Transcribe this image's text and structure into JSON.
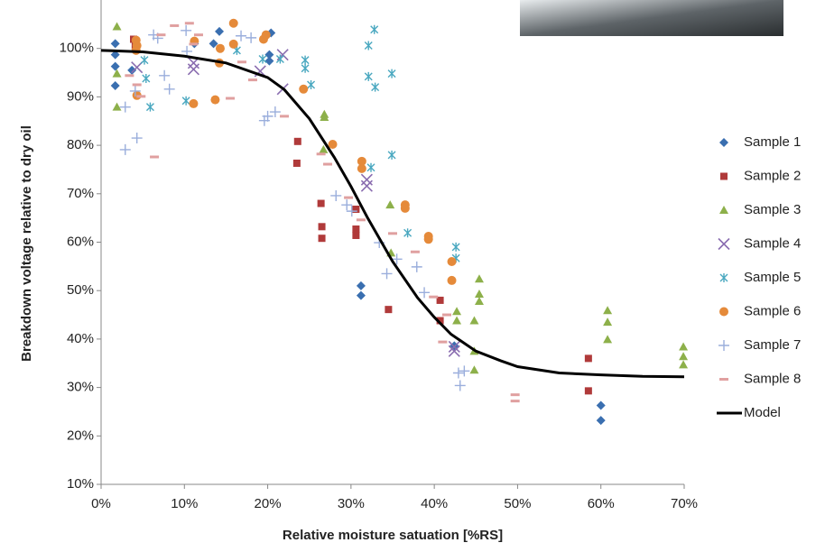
{
  "chart_data": {
    "type": "scatter",
    "x_label": "Relative moisture satuation [%RS]",
    "y_label": "Breakdown voltage  relative to dry oil",
    "xlim": [
      0,
      70
    ],
    "ylim": [
      10,
      110
    ],
    "xticks": [
      {
        "value": 0,
        "label": "0%"
      },
      {
        "value": 10,
        "label": "10%"
      },
      {
        "value": 20,
        "label": "20%"
      },
      {
        "value": 30,
        "label": "30%"
      },
      {
        "value": 40,
        "label": "40%"
      },
      {
        "value": 50,
        "label": "50%"
      },
      {
        "value": 60,
        "label": "60%"
      },
      {
        "value": 70,
        "label": "70%"
      }
    ],
    "yticks": [
      {
        "value": 10,
        "label": "10%"
      },
      {
        "value": 20,
        "label": "20%"
      },
      {
        "value": 30,
        "label": "30%"
      },
      {
        "value": 40,
        "label": "40%"
      },
      {
        "value": 50,
        "label": "50%"
      },
      {
        "value": 60,
        "label": "60%"
      },
      {
        "value": 70,
        "label": "70%"
      },
      {
        "value": 80,
        "label": "80%"
      },
      {
        "value": 90,
        "label": "90%"
      },
      {
        "value": 100,
        "label": "100%"
      }
    ],
    "grid": false,
    "legend": "right",
    "series": [
      {
        "name": "Sample 1",
        "color": "#3a6fb0",
        "marker": "diamond",
        "x": [
          1.7,
          1.7,
          1.7,
          1.7,
          3.7,
          11.2,
          14.2,
          13.5,
          20.2,
          20.2,
          20.4,
          31.2,
          31.2,
          42.4,
          60,
          60
        ],
        "values": [
          101,
          98.7,
          96.3,
          92.3,
          95.5,
          101,
          103.5,
          101,
          98.7,
          97.4,
          103.2,
          49,
          51,
          38.6,
          26.3,
          23.2
        ]
      },
      {
        "name": "Sample 2",
        "color": "#b03a3a",
        "marker": "square",
        "x": [
          3.9,
          4.1,
          23.6,
          23.5,
          26.4,
          26.5,
          26.5,
          30.6,
          30.6,
          30.6,
          34.5,
          40.7,
          40.7,
          58.5,
          58.5
        ],
        "values": [
          101.9,
          100.5,
          80.8,
          76.3,
          68,
          63.2,
          60.8,
          62.7,
          61.4,
          66.8,
          46.1,
          48,
          43.8,
          36,
          29.3
        ]
      },
      {
        "name": "Sample 3",
        "color": "#8db04a",
        "marker": "triangle",
        "x": [
          1.9,
          1.9,
          1.9,
          26.8,
          26.8,
          26.7,
          34.7,
          34.8,
          42.7,
          42.7,
          44.8,
          45.4,
          45.4,
          45.4,
          44.8,
          44.8,
          60.8,
          60.8,
          60.8,
          69.9,
          69.9,
          69.9
        ],
        "values": [
          104.5,
          94.8,
          87.9,
          85.8,
          86.4,
          79.1,
          67.7,
          57.8,
          45.7,
          43.8,
          43.8,
          52.4,
          49.3,
          47.8,
          37.5,
          33.6,
          45.9,
          43.5,
          39.9,
          38.4,
          36.4,
          34.7
        ]
      },
      {
        "name": "Sample 4",
        "color": "#8a6db0",
        "marker": "x",
        "x": [
          4.3,
          11.1,
          11.1,
          19.1,
          21.8,
          21.8,
          31.9,
          31.9,
          42.4,
          42.4
        ],
        "values": [
          96.1,
          97,
          95.7,
          95.3,
          98.7,
          91.6,
          72.9,
          71.6,
          38.4,
          37.5
        ]
      },
      {
        "name": "Sample 5",
        "color": "#4aa8c0",
        "marker": "asterisk",
        "x": [
          5.2,
          5.4,
          5.9,
          10.2,
          16.3,
          19.4,
          21.5,
          24.5,
          24.5,
          25.2,
          32.1,
          32.8,
          32.1,
          32.9,
          34.9,
          34.9,
          32.4,
          36.8,
          42.6,
          42.6
        ],
        "values": [
          97.6,
          93.8,
          87.9,
          89.2,
          99.6,
          97.8,
          97.8,
          97.6,
          95.9,
          92.5,
          100.6,
          103.9,
          94.2,
          92,
          94.8,
          78,
          75.4,
          61.9,
          59,
          56.7
        ]
      },
      {
        "name": "Sample 6",
        "color": "#e58a3a",
        "marker": "circle",
        "x": [
          4.2,
          4.3,
          4.2,
          4.3,
          11.2,
          11.1,
          13.7,
          14.3,
          14.2,
          15.9,
          15.9,
          19.8,
          19.5,
          24.3,
          27.8,
          31.3,
          31.3,
          36.5,
          36.5,
          39.3,
          39.3,
          42.1,
          42.1
        ],
        "values": [
          101.7,
          100.6,
          99.6,
          90.3,
          101.5,
          88.6,
          89.4,
          100,
          97,
          105.2,
          100.9,
          102.8,
          101.9,
          91.6,
          80.2,
          76.7,
          75.2,
          67.7,
          67,
          61.2,
          60.6,
          56,
          52.1
        ]
      },
      {
        "name": "Sample 7",
        "color": "#9aaedc",
        "marker": "plus",
        "x": [
          2.9,
          4.3,
          4.1,
          2.9,
          6.3,
          6.8,
          7.6,
          8.2,
          10.2,
          10.3,
          16.8,
          18,
          19.6,
          20,
          20.9,
          28.2,
          29.5,
          30.1,
          33.4,
          34.3,
          35.5,
          37.9,
          38.8,
          42.9,
          43.6,
          43.1
        ],
        "values": [
          79.1,
          81.5,
          91.2,
          87.9,
          102.8,
          102.1,
          94.4,
          91.6,
          103.7,
          99.4,
          102.6,
          102.2,
          85.1,
          86,
          86.9,
          69.6,
          67.7,
          66.4,
          59.9,
          53.5,
          56.5,
          54.9,
          49.6,
          33,
          33.4,
          30.4
        ]
      },
      {
        "name": "Sample 8",
        "color": "#e0a0a0",
        "marker": "dash",
        "x": [
          3.4,
          4.3,
          4.8,
          6.4,
          7.2,
          8.8,
          10.6,
          11.7,
          11.1,
          15.5,
          16.9,
          18.2,
          22,
          26.4,
          27.2,
          29.7,
          31.2,
          35,
          37.7,
          39.9,
          41,
          41.5,
          49.7,
          49.7
        ],
        "values": [
          94.4,
          92.5,
          90.1,
          77.6,
          102.8,
          104.7,
          105.2,
          102.8,
          100.9,
          89.7,
          97.2,
          93.5,
          86,
          78.2,
          76.1,
          69.2,
          64.6,
          61.8,
          58,
          48.7,
          39.4,
          45,
          28.5,
          27.2
        ]
      },
      {
        "name": "Model",
        "color": "#000000",
        "marker": "line",
        "x": [
          0,
          5,
          10,
          15,
          20,
          22,
          25,
          28,
          30,
          32,
          35,
          38,
          40,
          42,
          45,
          48,
          50,
          55,
          60,
          65,
          70
        ],
        "values": [
          99.6,
          99.3,
          98.4,
          97,
          94,
          91.5,
          85.5,
          77.5,
          71.5,
          65,
          56,
          48.5,
          44.5,
          41,
          37.5,
          35.5,
          34.3,
          33,
          32.6,
          32.3,
          32.2
        ]
      }
    ]
  }
}
